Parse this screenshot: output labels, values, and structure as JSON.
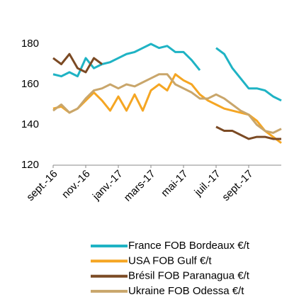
{
  "chart_data": {
    "type": "line",
    "x": [
      0,
      0.5,
      1,
      1.5,
      2,
      2.5,
      3,
      3.5,
      4,
      4.5,
      5,
      5.5,
      6,
      6.5,
      7,
      7.5,
      8,
      8.5,
      9,
      9.5,
      10,
      10.5,
      11,
      11.5,
      12,
      12.5,
      13,
      13.5,
      14
    ],
    "xlim": [
      0,
      14
    ],
    "xticks": [
      {
        "value": 0,
        "label": "sept.-16"
      },
      {
        "value": 2,
        "label": "nov.-16"
      },
      {
        "value": 4,
        "label": "janv.-17"
      },
      {
        "value": 6,
        "label": "mars-17"
      },
      {
        "value": 8,
        "label": "mai-17"
      },
      {
        "value": 10,
        "label": "juil.-17"
      },
      {
        "value": 12,
        "label": "sept.-17"
      }
    ],
    "ylim": [
      120,
      183
    ],
    "yticks": [
      120,
      140,
      160,
      180
    ],
    "series": [
      {
        "name": "France FOB Bordeaux €/t",
        "color": "#1fb3c4",
        "values": [
          165,
          164,
          166,
          164,
          173,
          168,
          170,
          171,
          173,
          175,
          176,
          178,
          180,
          178,
          179,
          176,
          176,
          172,
          167,
          null,
          178,
          175,
          168,
          163,
          158,
          158,
          157,
          154,
          152
        ]
      },
      {
        "name": "USA FOB Gulf €/t",
        "color": "#f5a623",
        "values": [
          148,
          149,
          146,
          148,
          152,
          156,
          152,
          147,
          154,
          147,
          155,
          147,
          157,
          160,
          157,
          165,
          162,
          160,
          155,
          152,
          150,
          148,
          147,
          146,
          145,
          142,
          137,
          134,
          131
        ]
      },
      {
        "name": "Brésil FOB Paranagua €/t",
        "color": "#7b4a24",
        "values": [
          173,
          170,
          175,
          168,
          166,
          173,
          170,
          null,
          null,
          null,
          null,
          null,
          null,
          null,
          null,
          null,
          null,
          null,
          null,
          null,
          139,
          137,
          137,
          135,
          133,
          134,
          134,
          133,
          133
        ]
      },
      {
        "name": "Ukraine FOB Odessa €/t",
        "color": "#c9a66b",
        "values": [
          147,
          150,
          146,
          148,
          153,
          157,
          158,
          160,
          158,
          160,
          159,
          161,
          163,
          165,
          165,
          160,
          158,
          156,
          153,
          153,
          155,
          153,
          150,
          147,
          145,
          140,
          137,
          136,
          138
        ]
      }
    ]
  }
}
